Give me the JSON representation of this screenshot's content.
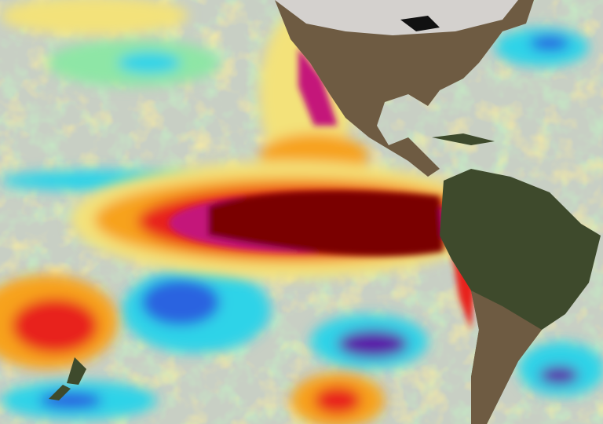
{
  "map": {
    "colors": {
      "neutral": "#c8cfc4",
      "mild_warm": "#f3e27a",
      "warm": "#f7a21e",
      "hot": "#e8241a",
      "very_hot": "#c4127a",
      "extreme": "#7a0000",
      "mild_cool": "#8ee6a6",
      "cool": "#2fd3e8",
      "cold": "#2b64e0",
      "very_cold": "#5a1aa8",
      "land_dark": "#3e4a2c",
      "land_brown": "#6e5b42",
      "snow": "#e6e6e6"
    }
  }
}
